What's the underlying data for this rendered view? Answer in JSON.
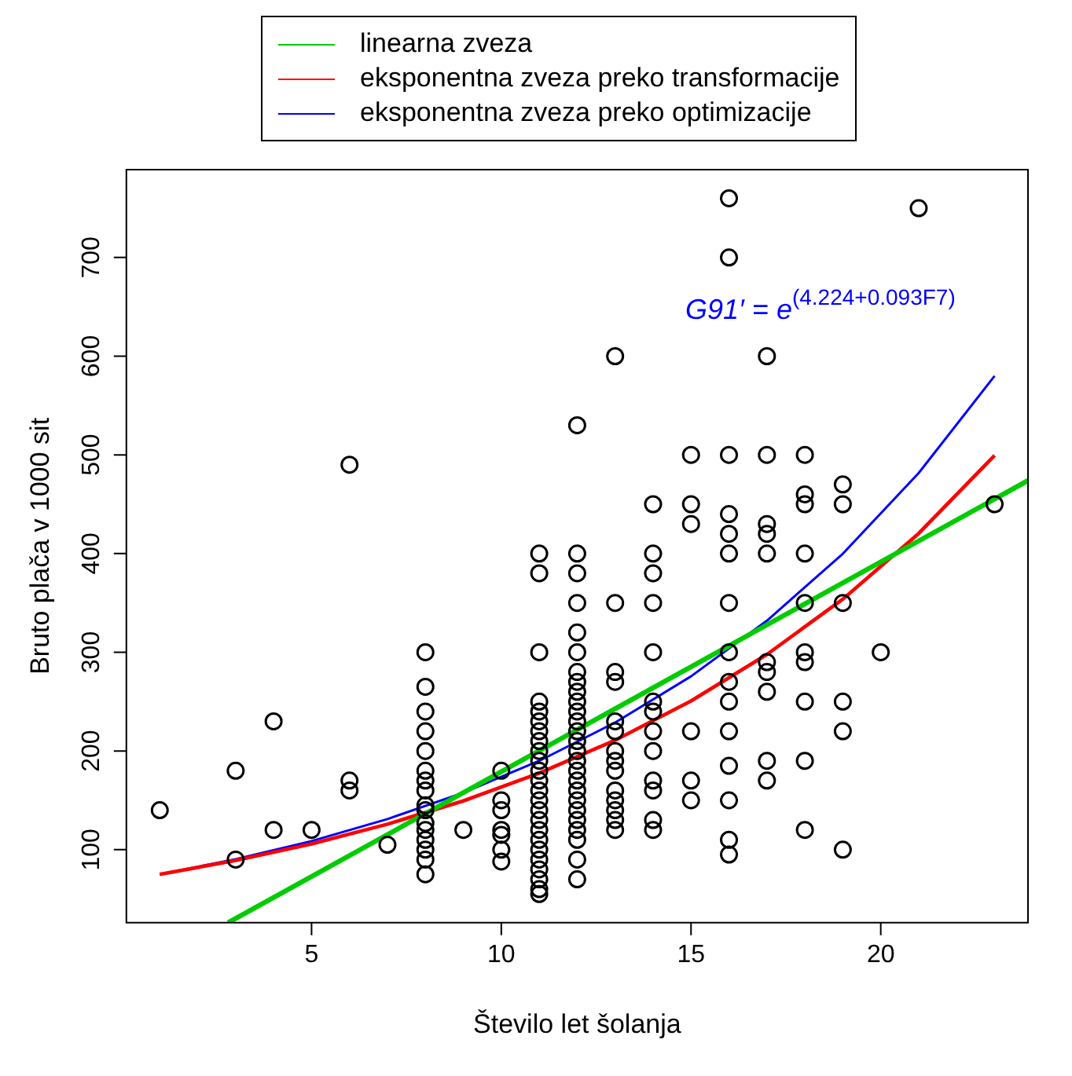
{
  "chart_data": {
    "type": "scatter",
    "xlabel": "Število let šolanja",
    "ylabel": "Bruto plača v 1000 sit",
    "xlim": [
      0.12,
      23.88
    ],
    "xticks": [
      5,
      10,
      15,
      20
    ],
    "ylim": [
      26,
      789
    ],
    "yticks": [
      100,
      200,
      300,
      400,
      500,
      600,
      700
    ],
    "grid": false,
    "legend": "top",
    "annotations": [
      "G91′ = e$^{(4.224+0.093F7)}$"
    ],
    "series": [
      {
        "marker": "circle",
        "color": "#000000",
        "x": [
          1,
          3,
          3,
          4,
          4,
          5,
          6,
          6,
          6,
          7,
          8,
          8,
          8,
          8,
          8,
          8,
          8,
          8,
          8,
          8,
          8,
          8,
          8,
          8,
          8,
          8,
          9,
          10,
          10,
          10,
          10,
          10,
          10,
          10,
          11,
          11,
          11,
          11,
          11,
          11,
          11,
          11,
          11,
          11,
          11,
          11,
          11,
          11,
          11,
          11,
          11,
          11,
          11,
          11,
          11,
          11,
          11,
          11,
          12,
          12,
          12,
          12,
          12,
          12,
          12,
          12,
          12,
          12,
          12,
          12,
          12,
          12,
          12,
          12,
          12,
          12,
          12,
          12,
          12,
          12,
          12,
          12,
          12,
          12,
          13,
          13,
          13,
          13,
          13,
          13,
          13,
          13,
          13,
          13,
          13,
          13,
          13,
          13,
          14,
          14,
          14,
          14,
          14,
          14,
          14,
          14,
          14,
          14,
          14,
          14,
          14,
          15,
          15,
          15,
          15,
          15,
          15,
          16,
          16,
          16,
          16,
          16,
          16,
          16,
          16,
          16,
          16,
          16,
          16,
          16,
          16,
          16,
          17,
          17,
          17,
          17,
          17,
          17,
          17,
          17,
          17,
          17,
          18,
          18,
          18,
          18,
          18,
          18,
          18,
          18,
          18,
          18,
          19,
          19,
          19,
          19,
          19,
          19,
          20,
          21,
          23
        ],
        "values": [
          140,
          180,
          90,
          230,
          120,
          120,
          490,
          170,
          160,
          105,
          300,
          265,
          240,
          220,
          200,
          180,
          170,
          160,
          145,
          140,
          127,
          120,
          110,
          100,
          90,
          75,
          120,
          180,
          150,
          140,
          120,
          115,
          100,
          88,
          400,
          380,
          300,
          250,
          240,
          230,
          220,
          210,
          200,
          190,
          180,
          170,
          160,
          150,
          140,
          130,
          120,
          110,
          100,
          90,
          80,
          70,
          60,
          55,
          530,
          400,
          380,
          350,
          320,
          300,
          280,
          270,
          260,
          250,
          240,
          230,
          220,
          210,
          200,
          190,
          180,
          170,
          160,
          150,
          140,
          130,
          120,
          110,
          90,
          70,
          600,
          350,
          280,
          270,
          230,
          220,
          200,
          190,
          180,
          160,
          150,
          140,
          130,
          120,
          450,
          400,
          380,
          350,
          300,
          250,
          240,
          220,
          200,
          170,
          160,
          130,
          120,
          500,
          450,
          430,
          220,
          170,
          150,
          760,
          700,
          500,
          440,
          420,
          400,
          350,
          300,
          270,
          250,
          220,
          185,
          150,
          110,
          95,
          600,
          500,
          430,
          420,
          400,
          290,
          280,
          260,
          190,
          170,
          500,
          460,
          450,
          400,
          350,
          300,
          290,
          250,
          190,
          120,
          470,
          450,
          350,
          250,
          220,
          100,
          300,
          750,
          450
        ]
      },
      {
        "type": "line",
        "name": "linearna zveza",
        "color": "#00cc00",
        "marker": "none",
        "x": [
          2.8,
          23.88
        ],
        "values": [
          26,
          474
        ]
      },
      {
        "type": "line",
        "name": "eksponentna zveza preko transformacije",
        "color": "#ff0000",
        "marker": "none",
        "x": [
          1,
          3,
          5,
          7,
          9,
          11,
          13,
          15,
          17,
          19,
          21,
          23
        ],
        "values": [
          75.0,
          89.1,
          105.8,
          125.8,
          149.4,
          177.5,
          210.9,
          250.7,
          297.8,
          353.8,
          420.4,
          499.5
        ]
      },
      {
        "type": "line",
        "name": "eksponentna zveza preko optimizacije",
        "color": "#0000ff",
        "marker": "none",
        "x": [
          1,
          3,
          5,
          7,
          9,
          11,
          13,
          15,
          17,
          19,
          21,
          23
        ],
        "values": [
          75.0,
          90.3,
          108.7,
          131.0,
          157.7,
          190.0,
          228.8,
          275.6,
          332.0,
          399.8,
          481.6,
          580.0
        ]
      }
    ]
  }
}
